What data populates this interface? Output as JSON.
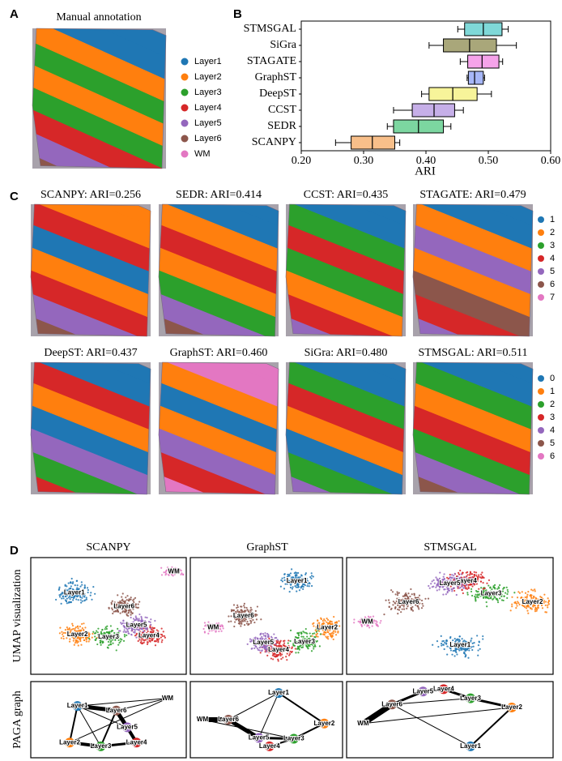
{
  "panel_labels": [
    "A",
    "B",
    "C",
    "D"
  ],
  "panel_a": {
    "title": "Manual annotation",
    "legend": [
      "Layer1",
      "Layer2",
      "Layer3",
      "Layer4",
      "Layer5",
      "Layer6",
      "WM"
    ]
  },
  "chart_data": {
    "type": "box",
    "xlabel": "ARI",
    "categories": [
      "STMSGAL",
      "SiGra",
      "STAGATE",
      "GraphST",
      "DeepST",
      "CCST",
      "SEDR",
      "SCANPY"
    ],
    "colors": [
      "#7fd8d8",
      "#a9a77a",
      "#f6a3ea",
      "#a7b7f7",
      "#f7f49a",
      "#c6afe8",
      "#7cd6a0",
      "#f8bf8a"
    ],
    "min": [
      0.451,
      0.405,
      0.455,
      0.466,
      0.393,
      0.348,
      0.338,
      0.255
    ],
    "q1": [
      0.462,
      0.428,
      0.467,
      0.468,
      0.405,
      0.378,
      0.348,
      0.28
    ],
    "median": [
      0.492,
      0.47,
      0.49,
      0.478,
      0.443,
      0.413,
      0.388,
      0.314
    ],
    "q3": [
      0.522,
      0.513,
      0.517,
      0.492,
      0.482,
      0.446,
      0.428,
      0.35
    ],
    "max": [
      0.532,
      0.545,
      0.523,
      0.494,
      0.505,
      0.46,
      0.44,
      0.358
    ],
    "xlim": [
      0.2,
      0.6
    ],
    "xticks": [
      {
        "value": 0.2,
        "label": "0.20"
      },
      {
        "value": 0.3,
        "label": "0.30"
      },
      {
        "value": 0.4,
        "label": "0.40"
      },
      {
        "value": 0.5,
        "label": "0.50"
      },
      {
        "value": 0.6,
        "label": "0.60"
      }
    ]
  },
  "panel_c": {
    "titles": [
      "SCANPY: ARI=0.256",
      "SEDR: ARI=0.414",
      "CCST: ARI=0.435",
      "STAGATE: ARI=0.479",
      "DeepST: ARI=0.437",
      "GraphST: ARI=0.460",
      "SiGra: ARI=0.480",
      "STMSGAL: ARI=0.511"
    ],
    "legend_top": [
      "1",
      "2",
      "3",
      "4",
      "5",
      "6",
      "7"
    ],
    "legend_bottom": [
      "0",
      "1",
      "2",
      "3",
      "4",
      "5",
      "6"
    ]
  },
  "panel_d": {
    "columns": [
      "SCANPY",
      "GraphST",
      "STMSGAL"
    ],
    "rows": [
      "UMAP visualization",
      "PAGA graph"
    ],
    "umap_labels": [
      [
        "Layer1",
        "Layer2",
        "Layer3",
        "Layer4",
        "Layer5",
        "Layer6",
        "WM"
      ],
      [
        "Layer1",
        "Layer2",
        "Layer3",
        "Layer4",
        "Layer5",
        "Layer6",
        "WM"
      ],
      [
        "Layer1",
        "Layer2",
        "Layer3",
        "Layer4",
        "Layer5",
        "Layer6",
        "WM"
      ]
    ],
    "paga_labels": [
      [
        "Layer1",
        "Layer2",
        "Layer3",
        "Layer4",
        "Layer5",
        "Layer6",
        "WM"
      ],
      [
        "Layer1",
        "Layer2",
        "Layer3",
        "Layer4",
        "Layer5",
        "Layer6",
        "WM"
      ],
      [
        "Layer1",
        "Layer2",
        "Layer3",
        "Layer4",
        "Layer5",
        "Layer6",
        "WM"
      ]
    ]
  }
}
